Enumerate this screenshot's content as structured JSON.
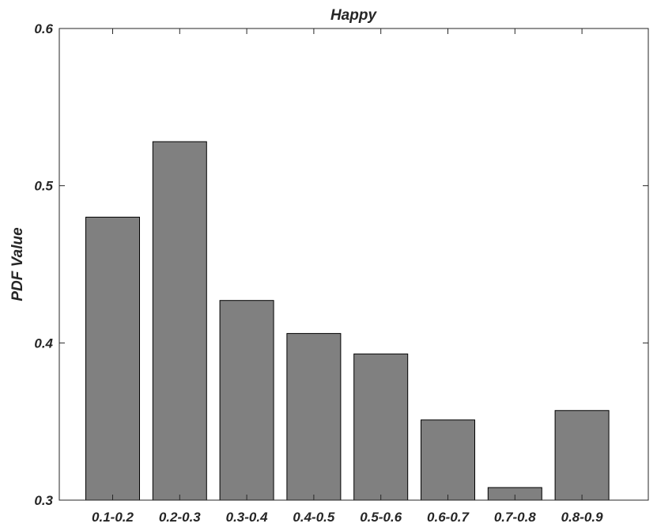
{
  "chart_data": {
    "type": "bar",
    "title": "Happy",
    "xlabel": "",
    "ylabel": "PDF Value",
    "categories": [
      "0.1-0.2",
      "0.2-0.3",
      "0.3-0.4",
      "0.4-0.5",
      "0.5-0.6",
      "0.6-0.7",
      "0.7-0.8",
      "0.8-0.9"
    ],
    "values": [
      0.48,
      0.528,
      0.427,
      0.406,
      0.393,
      0.351,
      0.308,
      0.357
    ],
    "ylim": [
      0.3,
      0.6
    ],
    "yticks": [
      "0.3",
      "0.4",
      "0.5",
      "0.6"
    ],
    "grid": false,
    "bar_color": "#808080",
    "bar_edge_color": "#000000"
  }
}
